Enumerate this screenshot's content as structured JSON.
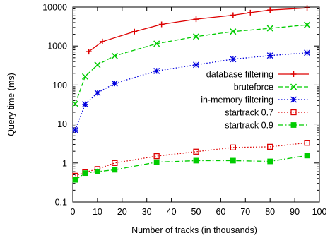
{
  "chart_data": {
    "type": "line",
    "title": "",
    "xlabel": "Number of tracks (in thousands)",
    "ylabel": "Query time (ms)",
    "xlim": [
      0,
      100
    ],
    "ylim": [
      0.1,
      10000
    ],
    "yscale": "log",
    "grid": false,
    "legend_position": "right",
    "x_ticks": [
      "0",
      "10",
      "20",
      "30",
      "40",
      "50",
      "60",
      "70",
      "80",
      "90",
      "100"
    ],
    "y_ticks": [
      "0.1",
      "1",
      "10",
      "100",
      "1000",
      "10000"
    ],
    "series": [
      {
        "name": "database filtering",
        "color": "#dd0000",
        "dash": "solid",
        "marker": "plus",
        "x": [
          6.5,
          12,
          25,
          36,
          50,
          65,
          72,
          80,
          95
        ],
        "y": [
          720,
          1300,
          2350,
          3600,
          4900,
          6200,
          7200,
          8400,
          9500
        ]
      },
      {
        "name": "bruteforce",
        "color": "#00cc00",
        "dash": "dashed",
        "marker": "cross",
        "x": [
          1,
          5,
          10,
          17,
          34,
          50,
          65,
          80,
          95
        ],
        "y": [
          33,
          165,
          330,
          560,
          1150,
          1750,
          2350,
          2850,
          3500
        ]
      },
      {
        "name": "in-memory filtering",
        "color": "#0000dd",
        "dash": "dotted",
        "marker": "star",
        "x": [
          1,
          5,
          10,
          17,
          34,
          50,
          65,
          80,
          95
        ],
        "y": [
          7,
          32,
          63,
          110,
          230,
          330,
          460,
          570,
          670
        ]
      },
      {
        "name": "startrack 0.7",
        "color": "#dd0000",
        "dash": "dotted",
        "marker": "open-square",
        "x": [
          1,
          5,
          10,
          17,
          34,
          50,
          65,
          80,
          95
        ],
        "y": [
          0.47,
          0.58,
          0.7,
          1.0,
          1.5,
          1.95,
          2.5,
          2.6,
          3.3
        ]
      },
      {
        "name": "startrack 0.9",
        "color": "#00cc00",
        "dash": "dashdot",
        "marker": "filled-square",
        "x": [
          1,
          5,
          10,
          17,
          34,
          50,
          65,
          80,
          95
        ],
        "y": [
          0.37,
          0.55,
          0.6,
          0.67,
          1.05,
          1.15,
          1.15,
          1.1,
          1.55
        ]
      }
    ]
  }
}
